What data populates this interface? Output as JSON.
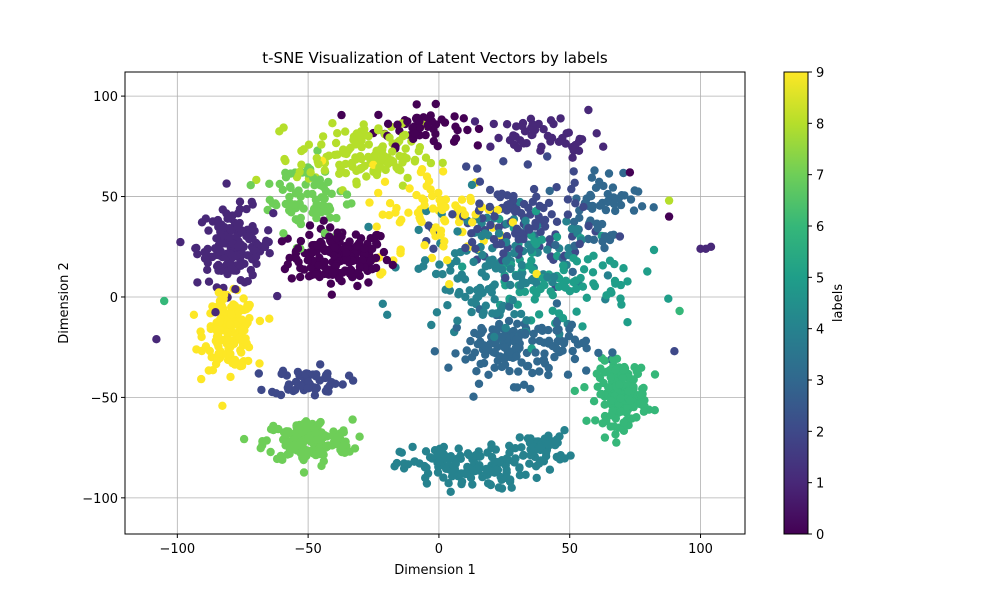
{
  "chart_data": {
    "type": "scatter",
    "title": "t-SNE Visualization of Latent Vectors by labels",
    "xlabel": "Dimension 1",
    "ylabel": "Dimension 2",
    "xlim": [
      -120,
      117
    ],
    "ylim": [
      -118,
      112
    ],
    "x_ticks": [
      -100,
      -50,
      0,
      50,
      100
    ],
    "y_ticks": [
      -100,
      -50,
      0,
      50,
      100
    ],
    "grid": true,
    "colormap": "viridis",
    "colorbar": {
      "label": "labels",
      "range": [
        0,
        9
      ],
      "ticks": [
        0,
        1,
        2,
        3,
        4,
        5,
        6,
        7,
        8,
        9
      ]
    },
    "clusters": [
      {
        "label": 0,
        "center": [
          -38,
          20
        ],
        "spread": [
          16,
          12
        ],
        "count": 170
      },
      {
        "label": 0,
        "center": [
          -8,
          85
        ],
        "spread": [
          14,
          8
        ],
        "count": 55
      },
      {
        "label": 1,
        "center": [
          -78,
          25
        ],
        "spread": [
          12,
          16
        ],
        "count": 150
      },
      {
        "label": 9,
        "center": [
          -80,
          -18
        ],
        "spread": [
          8,
          15
        ],
        "count": 170
      },
      {
        "label": 7,
        "center": [
          -50,
          -72
        ],
        "spread": [
          14,
          9
        ],
        "count": 150
      },
      {
        "label": 2,
        "center": [
          -50,
          -42
        ],
        "spread": [
          12,
          6
        ],
        "count": 60
      },
      {
        "label": 4,
        "center": [
          10,
          -85
        ],
        "spread": [
          20,
          9
        ],
        "count": 140
      },
      {
        "label": 4,
        "center": [
          40,
          -75
        ],
        "spread": [
          8,
          7
        ],
        "count": 50
      },
      {
        "label": 6,
        "center": [
          70,
          -48
        ],
        "spread": [
          8,
          13
        ],
        "count": 160
      },
      {
        "label": 3,
        "center": [
          30,
          -25
        ],
        "spread": [
          22,
          14
        ],
        "count": 150
      },
      {
        "label": 2,
        "center": [
          30,
          35
        ],
        "spread": [
          22,
          20
        ],
        "count": 120
      },
      {
        "label": 4,
        "center": [
          20,
          15
        ],
        "spread": [
          26,
          26
        ],
        "count": 150
      },
      {
        "label": 8,
        "center": [
          -30,
          70
        ],
        "spread": [
          20,
          13
        ],
        "count": 130
      },
      {
        "label": 7,
        "center": [
          -50,
          50
        ],
        "spread": [
          14,
          18
        ],
        "count": 80
      },
      {
        "label": 9,
        "center": [
          0,
          40
        ],
        "spread": [
          22,
          22
        ],
        "count": 90
      },
      {
        "label": 5,
        "center": [
          45,
          10
        ],
        "spread": [
          26,
          22
        ],
        "count": 100
      },
      {
        "label": 3,
        "center": [
          60,
          45
        ],
        "spread": [
          14,
          18
        ],
        "count": 60
      },
      {
        "label": 1,
        "center": [
          40,
          80
        ],
        "spread": [
          18,
          8
        ],
        "count": 50
      }
    ],
    "outliers": [
      {
        "x": 102,
        "y": 24,
        "label": 1
      },
      {
        "x": 104,
        "y": 25,
        "label": 1
      },
      {
        "x": 100,
        "y": 24,
        "label": 1
      },
      {
        "x": -108,
        "y": -21,
        "label": 1
      },
      {
        "x": -105,
        "y": -2,
        "label": 6
      },
      {
        "x": 88,
        "y": 40,
        "label": 0
      },
      {
        "x": 90,
        "y": -27,
        "label": 2
      },
      {
        "x": 92,
        "y": -7,
        "label": 6
      },
      {
        "x": 73,
        "y": 62,
        "label": 0
      },
      {
        "x": 88,
        "y": 48,
        "label": 8
      }
    ]
  }
}
